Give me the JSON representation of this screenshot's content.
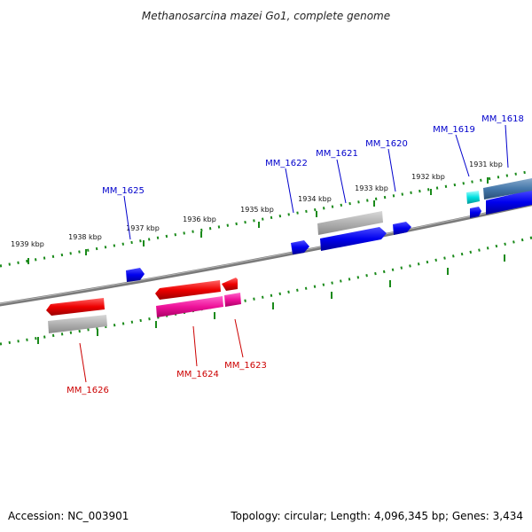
{
  "title": "Methanosarcina mazei Go1, complete genome",
  "footer": {
    "accession": "Accession: NC_003901",
    "stats": "Topology: circular; Length: 4,096,345 bp; Genes: 3,434"
  },
  "ticks": [
    "1931 kbp",
    "1932 kbp",
    "1933 kbp",
    "1934 kbp",
    "1935 kbp",
    "1936 kbp",
    "1937 kbp",
    "1938 kbp",
    "1939 kbp"
  ],
  "genes_forward": [
    "MM_1618",
    "MM_1619",
    "MM_1620",
    "MM_1621",
    "MM_1622",
    "MM_1625"
  ],
  "genes_reverse": [
    "MM_1623",
    "MM_1624",
    "MM_1626"
  ],
  "colors": {
    "forward_label": "#0000cc",
    "reverse_label": "#cc0000",
    "backbone": "#808080",
    "ticks": "#1a8a1a"
  }
}
